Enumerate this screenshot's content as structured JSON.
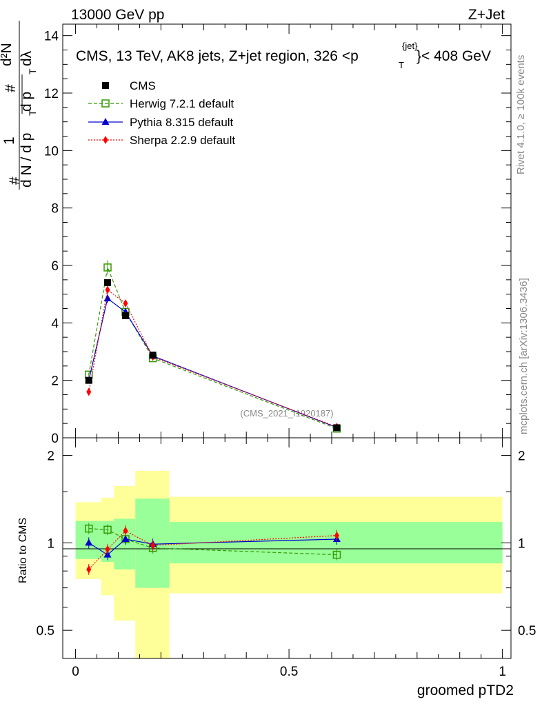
{
  "header": {
    "left": "13000 GeV pp",
    "right": "Z+Jet",
    "rivet": "Rivet 4.1.0, ≥ 100k events",
    "mcplots": "mcplots.cern.ch [arXiv:1306.3436]",
    "watermark": "(CMS_2021_I1920187)"
  },
  "top_panel": {
    "title_main": "CMS, 13 TeV, AK8 jets, Z+jet region, 326 <p",
    "title_sup": "{jet}",
    "title_sub": "T",
    "title_end": "}< 408 GeV",
    "ylabel": {
      "hash1": "#",
      "one": "1",
      "hash2": "#",
      "d2N": "d²N",
      "dN": "d N / d p",
      "T1": "T",
      "dpTdl": "d p",
      "T2": "T",
      "dlambda": "dλ"
    },
    "yticks": [
      {
        "v": 0,
        "label": "0"
      },
      {
        "v": 2,
        "label": "2"
      },
      {
        "v": 4,
        "label": "4"
      },
      {
        "v": 6,
        "label": "6"
      },
      {
        "v": 8,
        "label": "8"
      },
      {
        "v": 10,
        "label": "10"
      },
      {
        "v": 12,
        "label": "12"
      },
      {
        "v": 14,
        "label": "14"
      }
    ]
  },
  "bottom_panel": {
    "ylabel": "Ratio to CMS",
    "yticks": [
      {
        "v": 0.5,
        "label": "0.5"
      },
      {
        "v": 1,
        "label": "1"
      },
      {
        "v": 2,
        "label": "2"
      }
    ],
    "xlabel": "groomed pTD2",
    "xticks": [
      {
        "v": 0,
        "label": "0"
      },
      {
        "v": 0.5,
        "label": "0.5"
      },
      {
        "v": 1,
        "label": "1"
      }
    ]
  },
  "legend": [
    {
      "key": "cms",
      "label": "CMS"
    },
    {
      "key": "herwig",
      "label": "Herwig 7.2.1 default"
    },
    {
      "key": "pythia",
      "label": "Pythia 8.315 default"
    },
    {
      "key": "sherpa",
      "label": "Sherpa 2.2.9 default"
    }
  ],
  "chart_data": {
    "type": "line",
    "xlim": [
      -0.03,
      1.02
    ],
    "ylim_main": [
      0,
      14.4
    ],
    "ylim_ratio": [
      0.4,
      2.3
    ],
    "x": [
      0.031,
      0.075,
      0.117,
      0.181,
      0.612
    ],
    "bins": [
      [
        0.0,
        0.06
      ],
      [
        0.06,
        0.09
      ],
      [
        0.09,
        0.14
      ],
      [
        0.14,
        0.22
      ],
      [
        0.22,
        1.0
      ]
    ],
    "bands": {
      "green": [
        [
          0.88,
          1.19
        ],
        [
          0.86,
          1.19
        ],
        [
          0.81,
          1.21
        ],
        [
          0.7,
          1.42
        ],
        [
          0.85,
          1.18
        ]
      ],
      "yellow": [
        [
          0.75,
          1.38
        ],
        [
          0.66,
          1.43
        ],
        [
          0.54,
          1.57
        ],
        [
          0.4,
          1.77
        ],
        [
          0.67,
          1.44
        ]
      ],
      "colors": {
        "green": "#99ff99",
        "yellow": "#ffff99"
      }
    },
    "series": [
      {
        "key": "cms",
        "name": "CMS",
        "color": "#000000",
        "marker": "square",
        "values": [
          2.0,
          5.4,
          4.25,
          2.88,
          0.35
        ],
        "errors": [
          0.05,
          0.1,
          0.08,
          0.05,
          0.02
        ]
      },
      {
        "key": "herwig",
        "name": "Herwig 7.2.1 default",
        "color": "#339900",
        "marker": "open-square",
        "dash": "5,3",
        "values": [
          2.2,
          5.93,
          4.38,
          2.77,
          0.32
        ],
        "ratio": [
          1.12,
          1.11,
          1.03,
          0.96,
          0.91
        ],
        "errors": [
          0.05,
          0.25,
          0.1,
          0.05,
          0.02
        ]
      },
      {
        "key": "pythia",
        "name": "Pythia 8.315 default",
        "color": "#0000cc",
        "marker": "triangle",
        "values": [
          2.0,
          4.85,
          4.38,
          2.85,
          0.36
        ],
        "ratio": [
          1.0,
          0.91,
          1.03,
          0.99,
          1.03
        ],
        "errors": [
          0.05,
          0.15,
          0.1,
          0.05,
          0.02
        ]
      },
      {
        "key": "sherpa",
        "name": "Sherpa 2.2.9 default",
        "color": "#ff0000",
        "marker": "diamond",
        "dash": "2,2",
        "values": [
          1.6,
          5.15,
          4.68,
          2.82,
          0.38
        ],
        "ratio": [
          0.81,
          0.95,
          1.1,
          0.98,
          1.06
        ],
        "errors": [
          0.05,
          0.12,
          0.1,
          0.05,
          0.02
        ]
      }
    ]
  }
}
